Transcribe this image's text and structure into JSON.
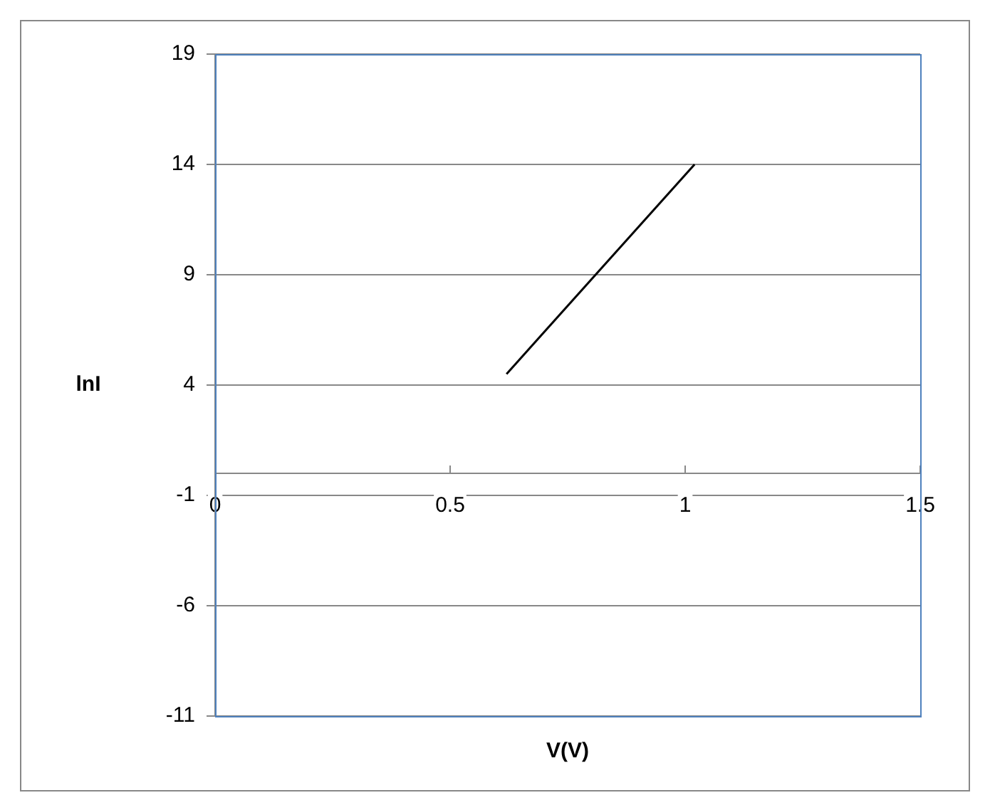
{
  "chart_data": {
    "type": "line",
    "xlabel": "V(V)",
    "ylabel": "lnI",
    "series": [
      {
        "x": [
          0.62,
          1.02
        ],
        "values": [
          4.5,
          14
        ],
        "color": "#000000"
      }
    ],
    "xlim": [
      0,
      1.5
    ],
    "xticks": [
      0,
      0.5,
      1,
      1.5
    ],
    "ylim": [
      -11,
      19
    ],
    "yticks": [
      -11,
      -6,
      -1,
      4,
      9,
      14,
      19
    ],
    "grid": "y",
    "marker": "none",
    "line_style": "solid"
  }
}
